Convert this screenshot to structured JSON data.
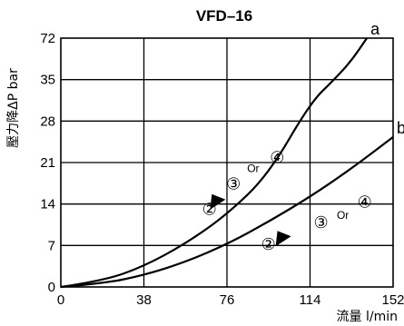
{
  "chart_data": {
    "type": "line",
    "title": "VFD–16",
    "xlabel": "流量 l/min",
    "ylabel": "壓力降ΔP bar",
    "x_ticks": [
      0,
      38,
      76,
      114,
      152
    ],
    "y_ticks": [
      0,
      7,
      14,
      21,
      28,
      35,
      72
    ],
    "x_tick_labels": [
      "0",
      "38",
      "76",
      "114",
      "152"
    ],
    "y_tick_labels": [
      "0",
      "7",
      "14",
      "21",
      "28",
      "35",
      "72"
    ],
    "xlim": [
      0,
      152
    ],
    "y_scale_note": "top interval runs 35 to 72",
    "grid": true,
    "series": [
      {
        "name": "a",
        "x": [
          0,
          20,
          38,
          57,
          76,
          95,
          114,
          125,
          133,
          140
        ],
        "y": [
          0,
          1.1,
          3.5,
          7.3,
          12.2,
          19.0,
          31.0,
          35.0,
          52.0,
          72.0
        ]
      },
      {
        "name": "b",
        "x": [
          0,
          20,
          38,
          57,
          76,
          95,
          114,
          133,
          152
        ],
        "y": [
          0,
          0.6,
          2.0,
          4.2,
          7.2,
          11.0,
          15.2,
          20.0,
          25.3
        ]
      }
    ],
    "annotations": [
      {
        "text": "②",
        "x": 68,
        "y": 12.2
      },
      {
        "text": "③",
        "x": 79,
        "y": 16.5
      },
      {
        "text": "Or",
        "x": 88,
        "y": 19.4
      },
      {
        "text": "④",
        "x": 99,
        "y": 20.9
      },
      {
        "text": "②",
        "x": 95,
        "y": 6.3
      },
      {
        "text": "③",
        "x": 119,
        "y": 10.0
      },
      {
        "text": "Or",
        "x": 129,
        "y": 11.5
      },
      {
        "text": "④",
        "x": 139,
        "y": 13.4
      }
    ],
    "arrows": [
      {
        "x": 72,
        "y": 14.6,
        "direction": "down-left"
      },
      {
        "x": 102,
        "y": 8.4,
        "direction": "down-left"
      }
    ]
  }
}
